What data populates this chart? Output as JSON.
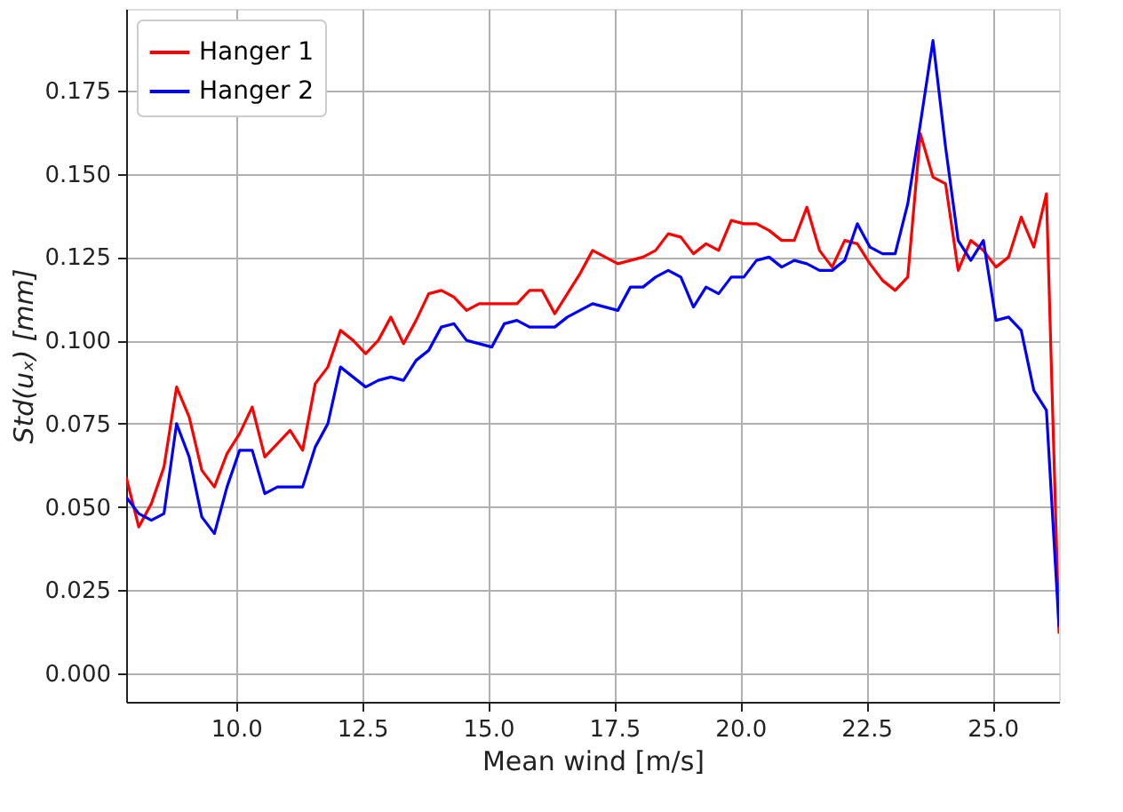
{
  "chart_data": {
    "type": "line",
    "xlabel": "Mean wind [m/s]",
    "ylabel": "Std(uₓ) [mm]",
    "x": [
      7.82,
      8.07,
      8.32,
      8.57,
      8.82,
      9.07,
      9.32,
      9.57,
      9.82,
      10.07,
      10.32,
      10.57,
      10.82,
      11.07,
      11.32,
      11.57,
      11.82,
      12.07,
      12.32,
      12.57,
      12.82,
      13.07,
      13.32,
      13.57,
      13.82,
      14.07,
      14.32,
      14.57,
      14.82,
      15.07,
      15.32,
      15.57,
      15.82,
      16.07,
      16.32,
      16.57,
      16.82,
      17.07,
      17.32,
      17.57,
      17.82,
      18.07,
      18.32,
      18.57,
      18.82,
      19.07,
      19.32,
      19.57,
      19.82,
      20.07,
      20.32,
      20.57,
      20.82,
      21.07,
      21.32,
      21.57,
      21.82,
      22.07,
      22.32,
      22.57,
      22.82,
      23.07,
      23.32,
      23.57,
      23.82,
      24.07,
      24.32,
      24.57,
      24.82,
      25.07,
      25.32,
      25.57,
      25.82,
      26.07,
      26.32
    ],
    "series": [
      {
        "name": "Hanger 1",
        "color": "#ff0000",
        "values": [
          0.059,
          0.044,
          0.051,
          0.062,
          0.086,
          0.077,
          0.061,
          0.056,
          0.066,
          0.072,
          0.08,
          0.065,
          0.069,
          0.073,
          0.067,
          0.087,
          0.092,
          0.103,
          0.1,
          0.096,
          0.1,
          0.107,
          0.099,
          0.106,
          0.114,
          0.115,
          0.113,
          0.109,
          0.111,
          0.111,
          0.111,
          0.111,
          0.115,
          0.115,
          0.108,
          0.114,
          0.12,
          0.127,
          0.125,
          0.123,
          0.124,
          0.125,
          0.127,
          0.132,
          0.131,
          0.126,
          0.129,
          0.127,
          0.136,
          0.135,
          0.135,
          0.133,
          0.13,
          0.13,
          0.14,
          0.127,
          0.122,
          0.13,
          0.129,
          0.123,
          0.118,
          0.115,
          0.119,
          0.162,
          0.149,
          0.147,
          0.121,
          0.13,
          0.127,
          0.122,
          0.125,
          0.137,
          0.128,
          0.144,
          0.012
        ]
      },
      {
        "name": "Hanger 2",
        "color": "#0000ff",
        "values": [
          0.053,
          0.048,
          0.046,
          0.048,
          0.075,
          0.065,
          0.047,
          0.042,
          0.056,
          0.067,
          0.067,
          0.054,
          0.056,
          0.056,
          0.056,
          0.068,
          0.075,
          0.092,
          0.089,
          0.086,
          0.088,
          0.089,
          0.088,
          0.094,
          0.097,
          0.104,
          0.105,
          0.1,
          0.099,
          0.098,
          0.105,
          0.106,
          0.104,
          0.104,
          0.104,
          0.107,
          0.109,
          0.111,
          0.11,
          0.109,
          0.116,
          0.116,
          0.119,
          0.121,
          0.119,
          0.11,
          0.116,
          0.114,
          0.119,
          0.119,
          0.124,
          0.125,
          0.122,
          0.124,
          0.123,
          0.121,
          0.121,
          0.124,
          0.135,
          0.128,
          0.126,
          0.126,
          0.141,
          0.165,
          0.19,
          0.158,
          0.13,
          0.124,
          0.13,
          0.106,
          0.107,
          0.103,
          0.085,
          0.079,
          0.014
        ]
      }
    ],
    "xlim": [
      7.82,
      26.32
    ],
    "ylim": [
      -0.0085,
      0.1995
    ],
    "xticks": [
      {
        "value": 10,
        "label": "10.0"
      },
      12.5,
      {
        "value": 15,
        "label": "15.0"
      },
      17.5,
      {
        "value": 20,
        "label": "20.0"
      },
      22.5,
      {
        "value": 25,
        "label": "25.0"
      }
    ],
    "yticks": [
      {
        "value": 0,
        "label": "0.000"
      },
      0.025,
      {
        "value": 0.05,
        "label": "0.050"
      },
      0.075,
      {
        "value": 0.1,
        "label": "0.100"
      },
      0.125,
      {
        "value": 0.15,
        "label": "0.150"
      },
      0.175
    ],
    "grid": true,
    "legend": "top left",
    "marker": "none",
    "line_style": "solid"
  }
}
